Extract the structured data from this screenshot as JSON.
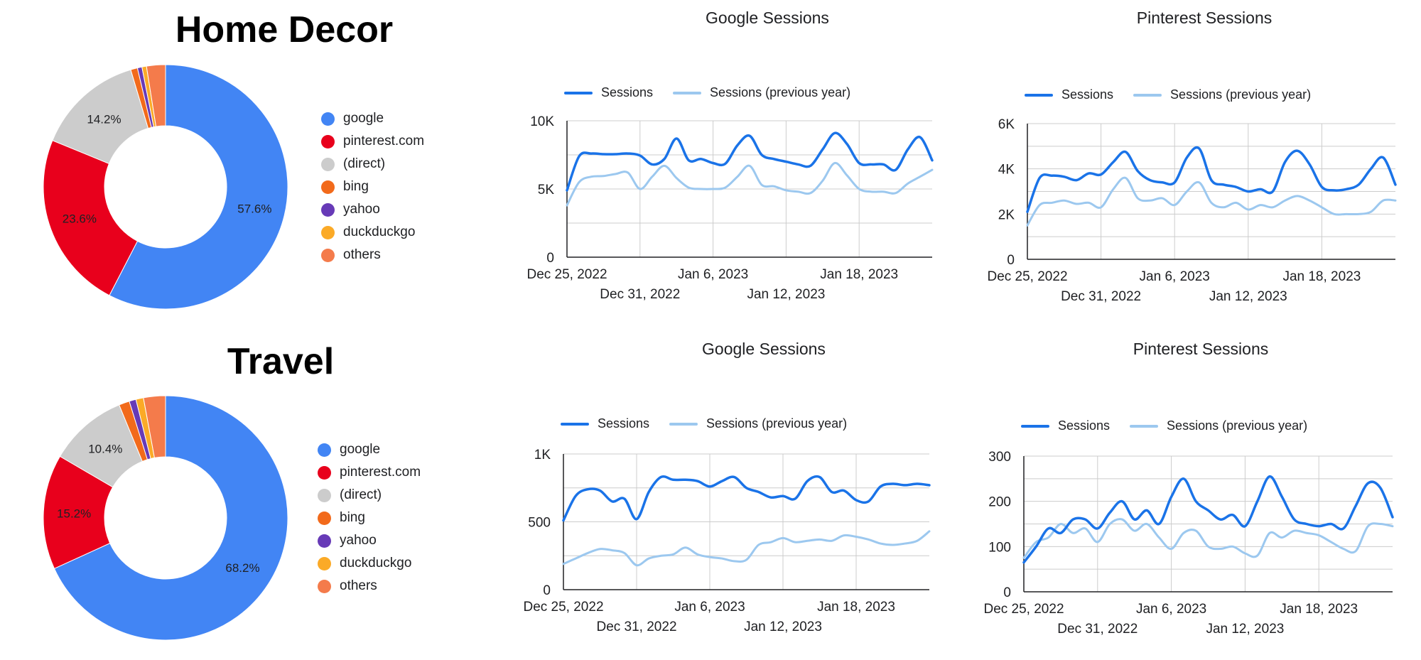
{
  "colors": {
    "google": "#4285f4",
    "pinterest": "#e8001c",
    "direct": "#cccccc",
    "bing": "#f26a1b",
    "yahoo": "#673ab7",
    "duckduckgo": "#fbaa27",
    "others": "#f47b4b",
    "sessions": "#1a73e8",
    "previous_year": "#9cc8ef",
    "grid": "#cccccc",
    "axis": "#202124"
  },
  "chart_data": [
    {
      "type": "pie",
      "panel": "home-decor-pie",
      "title": "Home Decor",
      "donut": true,
      "labels": [
        "google",
        "pinterest.com",
        "(direct)",
        "bing",
        "yahoo",
        "duckduckgo",
        "others"
      ],
      "values": [
        57.6,
        23.6,
        14.2,
        0.9,
        0.6,
        0.6,
        2.5
      ],
      "value_labels": [
        "57.6%",
        "23.6%",
        "14.2%",
        "",
        "",
        "",
        ""
      ],
      "legend_position": "right"
    },
    {
      "type": "line",
      "panel": "home-decor-google",
      "title": "Google Sessions",
      "x_ticks": [
        "Dec 25, 2022",
        "Dec 31, 2022",
        "Jan 6, 2023",
        "Jan 12, 2023",
        "Jan 18, 2023"
      ],
      "y_ticks": [
        "0",
        "5K",
        "10K"
      ],
      "ylim": [
        0,
        10000
      ],
      "grid": true,
      "legend_position": "top",
      "series": [
        {
          "name": "Sessions",
          "values": [
            4900,
            7400,
            7600,
            7550,
            7550,
            7600,
            7450,
            6800,
            7200,
            8700,
            7100,
            7200,
            6900,
            6850,
            8200,
            8900,
            7500,
            7200,
            7000,
            6800,
            6700,
            7900,
            9100,
            8300,
            6900,
            6800,
            6800,
            6400,
            7900,
            8800,
            7100
          ]
        },
        {
          "name": "Sessions (previous year)",
          "values": [
            3800,
            5500,
            5900,
            5950,
            6100,
            6200,
            5000,
            5900,
            6700,
            5800,
            5100,
            5000,
            5000,
            5100,
            5900,
            6700,
            5300,
            5200,
            4900,
            4800,
            4700,
            5600,
            6900,
            6000,
            5000,
            4800,
            4800,
            4700,
            5400,
            5900,
            6400
          ]
        }
      ]
    },
    {
      "type": "line",
      "panel": "home-decor-pinterest",
      "title": "Pinterest Sessions",
      "x_ticks": [
        "Dec 25, 2022",
        "Dec 31, 2022",
        "Jan 6, 2023",
        "Jan 12, 2023",
        "Jan 18, 2023"
      ],
      "y_ticks": [
        "0",
        "2K",
        "4K",
        "6K"
      ],
      "ylim": [
        0,
        6000
      ],
      "grid": true,
      "legend_position": "top",
      "series": [
        {
          "name": "Sessions",
          "values": [
            2100,
            3600,
            3700,
            3650,
            3500,
            3800,
            3750,
            4300,
            4750,
            3900,
            3500,
            3400,
            3400,
            4500,
            4900,
            3500,
            3300,
            3200,
            3000,
            3100,
            3000,
            4300,
            4800,
            4200,
            3200,
            3050,
            3100,
            3300,
            4000,
            4500,
            3300
          ]
        },
        {
          "name": "Sessions (previous year)",
          "values": [
            1500,
            2400,
            2500,
            2600,
            2450,
            2500,
            2300,
            3100,
            3600,
            2700,
            2600,
            2700,
            2400,
            3000,
            3400,
            2500,
            2300,
            2500,
            2200,
            2400,
            2300,
            2600,
            2800,
            2600,
            2300,
            2000,
            2000,
            2000,
            2100,
            2600,
            2600
          ]
        }
      ]
    },
    {
      "type": "pie",
      "panel": "travel-pie",
      "title": "Travel",
      "donut": true,
      "labels": [
        "google",
        "pinterest.com",
        "(direct)",
        "bing",
        "yahoo",
        "duckduckgo",
        "others"
      ],
      "values": [
        68.2,
        15.2,
        10.4,
        1.4,
        0.9,
        1.0,
        2.9
      ],
      "value_labels": [
        "68.2%",
        "15.2%",
        "10.4%",
        "",
        "",
        "",
        ""
      ],
      "legend_position": "right"
    },
    {
      "type": "line",
      "panel": "travel-google",
      "title": "Google Sessions",
      "x_ticks": [
        "Dec 25, 2022",
        "Dec 31, 2022",
        "Jan 6, 2023",
        "Jan 12, 2023",
        "Jan 18, 2023"
      ],
      "y_ticks": [
        "0",
        "500",
        "1K"
      ],
      "ylim": [
        0,
        1000
      ],
      "grid": true,
      "legend_position": "top",
      "series": [
        {
          "name": "Sessions",
          "values": [
            510,
            690,
            740,
            730,
            650,
            670,
            520,
            720,
            830,
            810,
            810,
            800,
            760,
            800,
            830,
            750,
            720,
            680,
            690,
            670,
            800,
            830,
            720,
            730,
            660,
            650,
            760,
            780,
            770,
            780,
            770
          ]
        },
        {
          "name": "Sessions (previous year)",
          "values": [
            190,
            230,
            270,
            300,
            290,
            270,
            180,
            230,
            250,
            260,
            310,
            260,
            240,
            230,
            210,
            220,
            330,
            350,
            380,
            350,
            360,
            370,
            360,
            400,
            390,
            370,
            340,
            330,
            340,
            360,
            430
          ]
        }
      ]
    },
    {
      "type": "line",
      "panel": "travel-pinterest",
      "title": "Pinterest Sessions",
      "x_ticks": [
        "Dec 25, 2022",
        "Dec 31, 2022",
        "Jan 6, 2023",
        "Jan 12, 2023",
        "Jan 18, 2023"
      ],
      "y_ticks": [
        "0",
        "100",
        "200",
        "300"
      ],
      "ylim": [
        0,
        300
      ],
      "grid": true,
      "legend_position": "top",
      "series": [
        {
          "name": "Sessions",
          "values": [
            65,
            100,
            140,
            130,
            160,
            160,
            140,
            175,
            200,
            160,
            180,
            150,
            210,
            250,
            200,
            180,
            160,
            170,
            145,
            200,
            255,
            210,
            160,
            150,
            145,
            150,
            140,
            190,
            240,
            230,
            165
          ]
        },
        {
          "name": "Sessions (previous year)",
          "values": [
            75,
            110,
            120,
            150,
            130,
            140,
            110,
            150,
            160,
            135,
            150,
            120,
            95,
            130,
            135,
            100,
            95,
            100,
            85,
            80,
            130,
            120,
            135,
            130,
            125,
            110,
            95,
            90,
            145,
            150,
            145
          ]
        }
      ]
    }
  ]
}
